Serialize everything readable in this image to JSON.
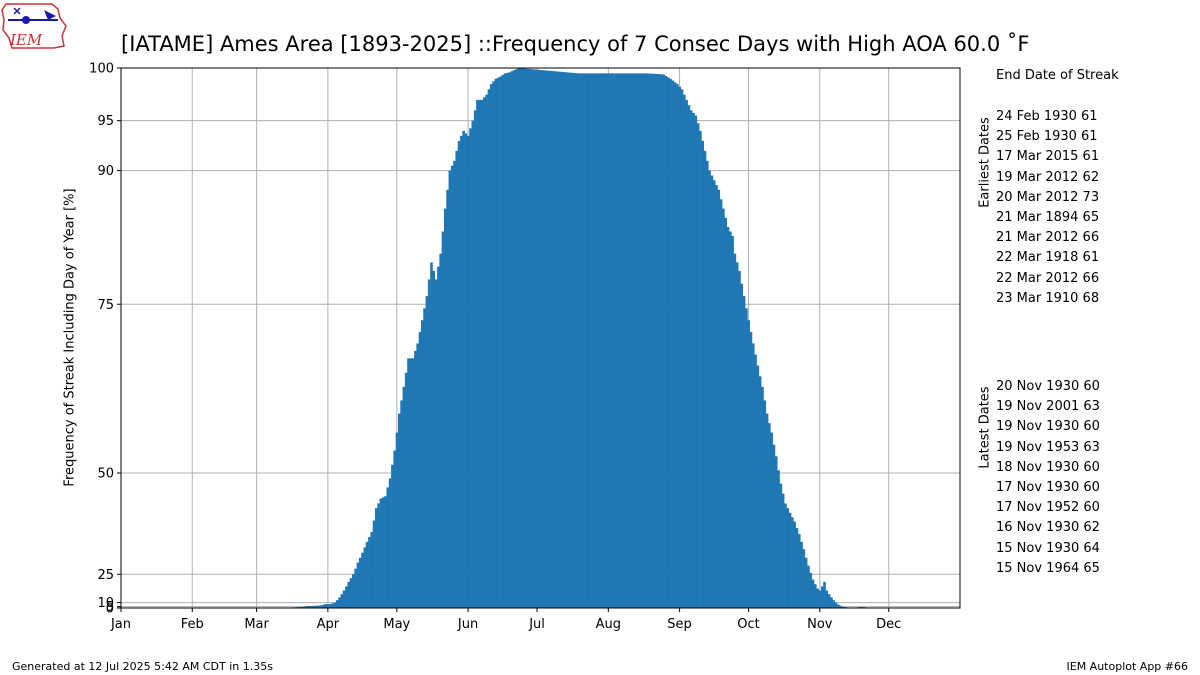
{
  "title": "[IATAME] Ames Area [1893-2025] ::Frequency of 7 Consec Days with High AOA 60.0 ˚F",
  "logo": {
    "text": "IEM"
  },
  "footer": {
    "generated": "Generated at 12 Jul 2025 5:42 AM CDT in 1.35s",
    "app": "IEM Autoplot App #66"
  },
  "side_panel": {
    "header": "End Date of Streak",
    "earliest_label": "Earliest Dates",
    "latest_label": "Latest Dates",
    "earliest": [
      "24 Feb 1930 61",
      "25 Feb 1930 61",
      "17 Mar 2015 61",
      "19 Mar 2012 62",
      "20 Mar 2012 73",
      "21 Mar 1894 65",
      "21 Mar 2012 66",
      "22 Mar 1918 61",
      "22 Mar 2012 66",
      "23 Mar 1910 68"
    ],
    "latest": [
      "20 Nov 1930 60",
      "19 Nov 2001 63",
      "19 Nov 1930 60",
      "19 Nov 1953 63",
      "18 Nov 1930 60",
      "17 Nov 1930 60",
      "17 Nov 1952 60",
      "16 Nov 1930 62",
      "15 Nov 1930 64",
      "15 Nov 1964 65"
    ]
  },
  "chart_data": {
    "type": "bar",
    "ylabel": "Frequency of Streak Including Day of Year [%]",
    "xlabel": "",
    "y_ticks": [
      0,
      5,
      10,
      25,
      50,
      75,
      90,
      95,
      100
    ],
    "y_scale": "power 2 (tick spacing widens toward 100)",
    "ylim": [
      0,
      100
    ],
    "xlim": [
      1,
      366
    ],
    "x_ticks": [
      {
        "day": 1,
        "label": "Jan"
      },
      {
        "day": 32,
        "label": "Feb"
      },
      {
        "day": 60,
        "label": "Mar"
      },
      {
        "day": 91,
        "label": "Apr"
      },
      {
        "day": 121,
        "label": "May"
      },
      {
        "day": 152,
        "label": "Jun"
      },
      {
        "day": 182,
        "label": "Jul"
      },
      {
        "day": 213,
        "label": "Aug"
      },
      {
        "day": 244,
        "label": "Sep"
      },
      {
        "day": 274,
        "label": "Oct"
      },
      {
        "day": 305,
        "label": "Nov"
      },
      {
        "day": 335,
        "label": "Dec"
      }
    ],
    "grid": true,
    "bar_color": "#1f77b4",
    "x_unit": "day of year",
    "keypoints": [
      [
        47,
        0
      ],
      [
        48,
        0.75
      ],
      [
        55,
        0.75
      ],
      [
        56,
        0
      ],
      [
        70,
        0
      ],
      [
        71,
        0.75
      ],
      [
        73,
        2
      ],
      [
        75,
        3
      ],
      [
        77,
        3.8
      ],
      [
        80,
        4.5
      ],
      [
        82,
        6
      ],
      [
        86,
        6.5
      ],
      [
        88,
        7
      ],
      [
        90,
        8.5
      ],
      [
        92,
        8.5
      ],
      [
        94,
        10
      ],
      [
        96,
        14
      ],
      [
        98,
        18
      ],
      [
        100,
        22
      ],
      [
        102,
        25
      ],
      [
        104,
        29
      ],
      [
        106,
        32
      ],
      [
        108,
        35
      ],
      [
        110,
        37.5
      ],
      [
        112,
        43
      ],
      [
        114,
        45
      ],
      [
        116,
        45.5
      ],
      [
        118,
        49
      ],
      [
        120,
        54
      ],
      [
        122,
        60
      ],
      [
        124,
        64
      ],
      [
        126,
        68
      ],
      [
        128,
        68
      ],
      [
        130,
        70
      ],
      [
        132,
        73
      ],
      [
        134,
        76
      ],
      [
        136,
        80
      ],
      [
        138,
        78
      ],
      [
        140,
        81
      ],
      [
        142,
        86
      ],
      [
        144,
        90
      ],
      [
        146,
        91
      ],
      [
        148,
        93
      ],
      [
        150,
        94
      ],
      [
        152,
        93.5
      ],
      [
        154,
        95
      ],
      [
        156,
        97
      ],
      [
        158,
        97
      ],
      [
        160,
        97.5
      ],
      [
        162,
        98.5
      ],
      [
        164,
        99
      ],
      [
        166,
        99.2
      ],
      [
        168,
        99.5
      ],
      [
        170,
        99.6
      ],
      [
        172,
        99.8
      ],
      [
        174,
        100
      ],
      [
        200,
        99.5
      ],
      [
        230,
        99.5
      ],
      [
        237,
        99.4
      ],
      [
        240,
        99
      ],
      [
        243,
        98.5
      ],
      [
        245,
        98
      ],
      [
        247,
        97
      ],
      [
        249,
        96
      ],
      [
        251,
        95.5
      ],
      [
        253,
        94
      ],
      [
        255,
        92
      ],
      [
        257,
        90
      ],
      [
        259,
        89
      ],
      [
        261,
        88
      ],
      [
        263,
        86
      ],
      [
        265,
        84
      ],
      [
        267,
        83
      ],
      [
        268,
        81
      ],
      [
        270,
        79
      ],
      [
        272,
        76
      ],
      [
        274,
        73
      ],
      [
        276,
        70
      ],
      [
        278,
        67
      ],
      [
        280,
        64
      ],
      [
        282,
        60
      ],
      [
        284,
        57
      ],
      [
        286,
        53
      ],
      [
        288,
        48
      ],
      [
        290,
        44
      ],
      [
        292,
        42
      ],
      [
        294,
        40
      ],
      [
        296,
        37
      ],
      [
        298,
        33
      ],
      [
        300,
        28
      ],
      [
        302,
        23
      ],
      [
        304,
        19
      ],
      [
        305,
        18
      ],
      [
        306,
        20
      ],
      [
        307,
        22
      ],
      [
        308,
        18
      ],
      [
        309,
        16
      ],
      [
        311,
        12
      ],
      [
        313,
        8
      ],
      [
        315,
        5
      ],
      [
        317,
        3.5
      ],
      [
        319,
        2
      ],
      [
        321,
        2.5
      ],
      [
        322,
        4
      ],
      [
        324,
        4
      ],
      [
        326,
        3
      ],
      [
        328,
        1.5
      ],
      [
        330,
        0.6
      ],
      [
        331,
        0
      ]
    ]
  }
}
